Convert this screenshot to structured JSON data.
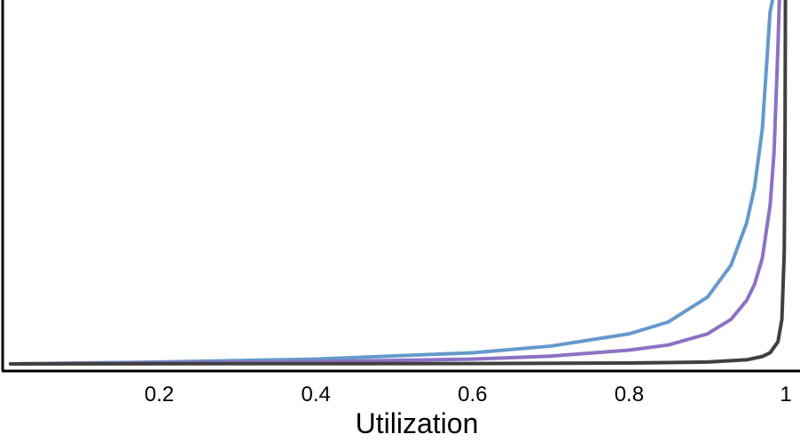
{
  "chart_data": {
    "type": "line",
    "xlabel": "Utilization",
    "ylabel": "",
    "title": "",
    "xlim": [
      0,
      1
    ],
    "ylim": [
      0,
      100
    ],
    "x_ticks": [
      {
        "value": 0.2,
        "label": "0.2"
      },
      {
        "value": 0.4,
        "label": "0.4"
      },
      {
        "value": 0.6,
        "label": "0.6"
      },
      {
        "value": 0.8,
        "label": "0.8"
      },
      {
        "value": 1.0,
        "label": "1"
      }
    ],
    "grid": false,
    "series": [
      {
        "color": "#6699cc",
        "points": [
          [
            0.01,
            0.0
          ],
          [
            0.2,
            0.5
          ],
          [
            0.4,
            1.3
          ],
          [
            0.6,
            3.0
          ],
          [
            0.7,
            4.8
          ],
          [
            0.8,
            8.1
          ],
          [
            0.85,
            11.3
          ],
          [
            0.9,
            18.0
          ],
          [
            0.93,
            26.6
          ],
          [
            0.95,
            38.0
          ],
          [
            0.96,
            47.5
          ],
          [
            0.97,
            63.3
          ],
          [
            0.98,
            95.0
          ],
          [
            0.985,
            100
          ]
        ]
      },
      {
        "color": "#8c72c4",
        "points": [
          [
            0.01,
            0.0
          ],
          [
            0.2,
            0.3
          ],
          [
            0.4,
            0.6
          ],
          [
            0.6,
            1.3
          ],
          [
            0.7,
            2.1
          ],
          [
            0.8,
            3.7
          ],
          [
            0.85,
            5.1
          ],
          [
            0.9,
            8.1
          ],
          [
            0.93,
            12.0
          ],
          [
            0.95,
            17.1
          ],
          [
            0.96,
            21.4
          ],
          [
            0.97,
            28.5
          ],
          [
            0.98,
            42.8
          ],
          [
            0.985,
            57.0
          ],
          [
            0.99,
            85.5
          ],
          [
            0.992,
            100
          ]
        ]
      },
      {
        "color": "#404040",
        "points": [
          [
            0.01,
            0.0
          ],
          [
            0.6,
            0.1
          ],
          [
            0.8,
            0.25
          ],
          [
            0.9,
            0.5
          ],
          [
            0.95,
            1.1
          ],
          [
            0.97,
            2.0
          ],
          [
            0.98,
            3.0
          ],
          [
            0.99,
            6.0
          ],
          [
            0.995,
            12.0
          ],
          [
            0.998,
            30.0
          ],
          [
            0.999,
            60.0
          ],
          [
            0.9995,
            100
          ]
        ]
      }
    ]
  }
}
